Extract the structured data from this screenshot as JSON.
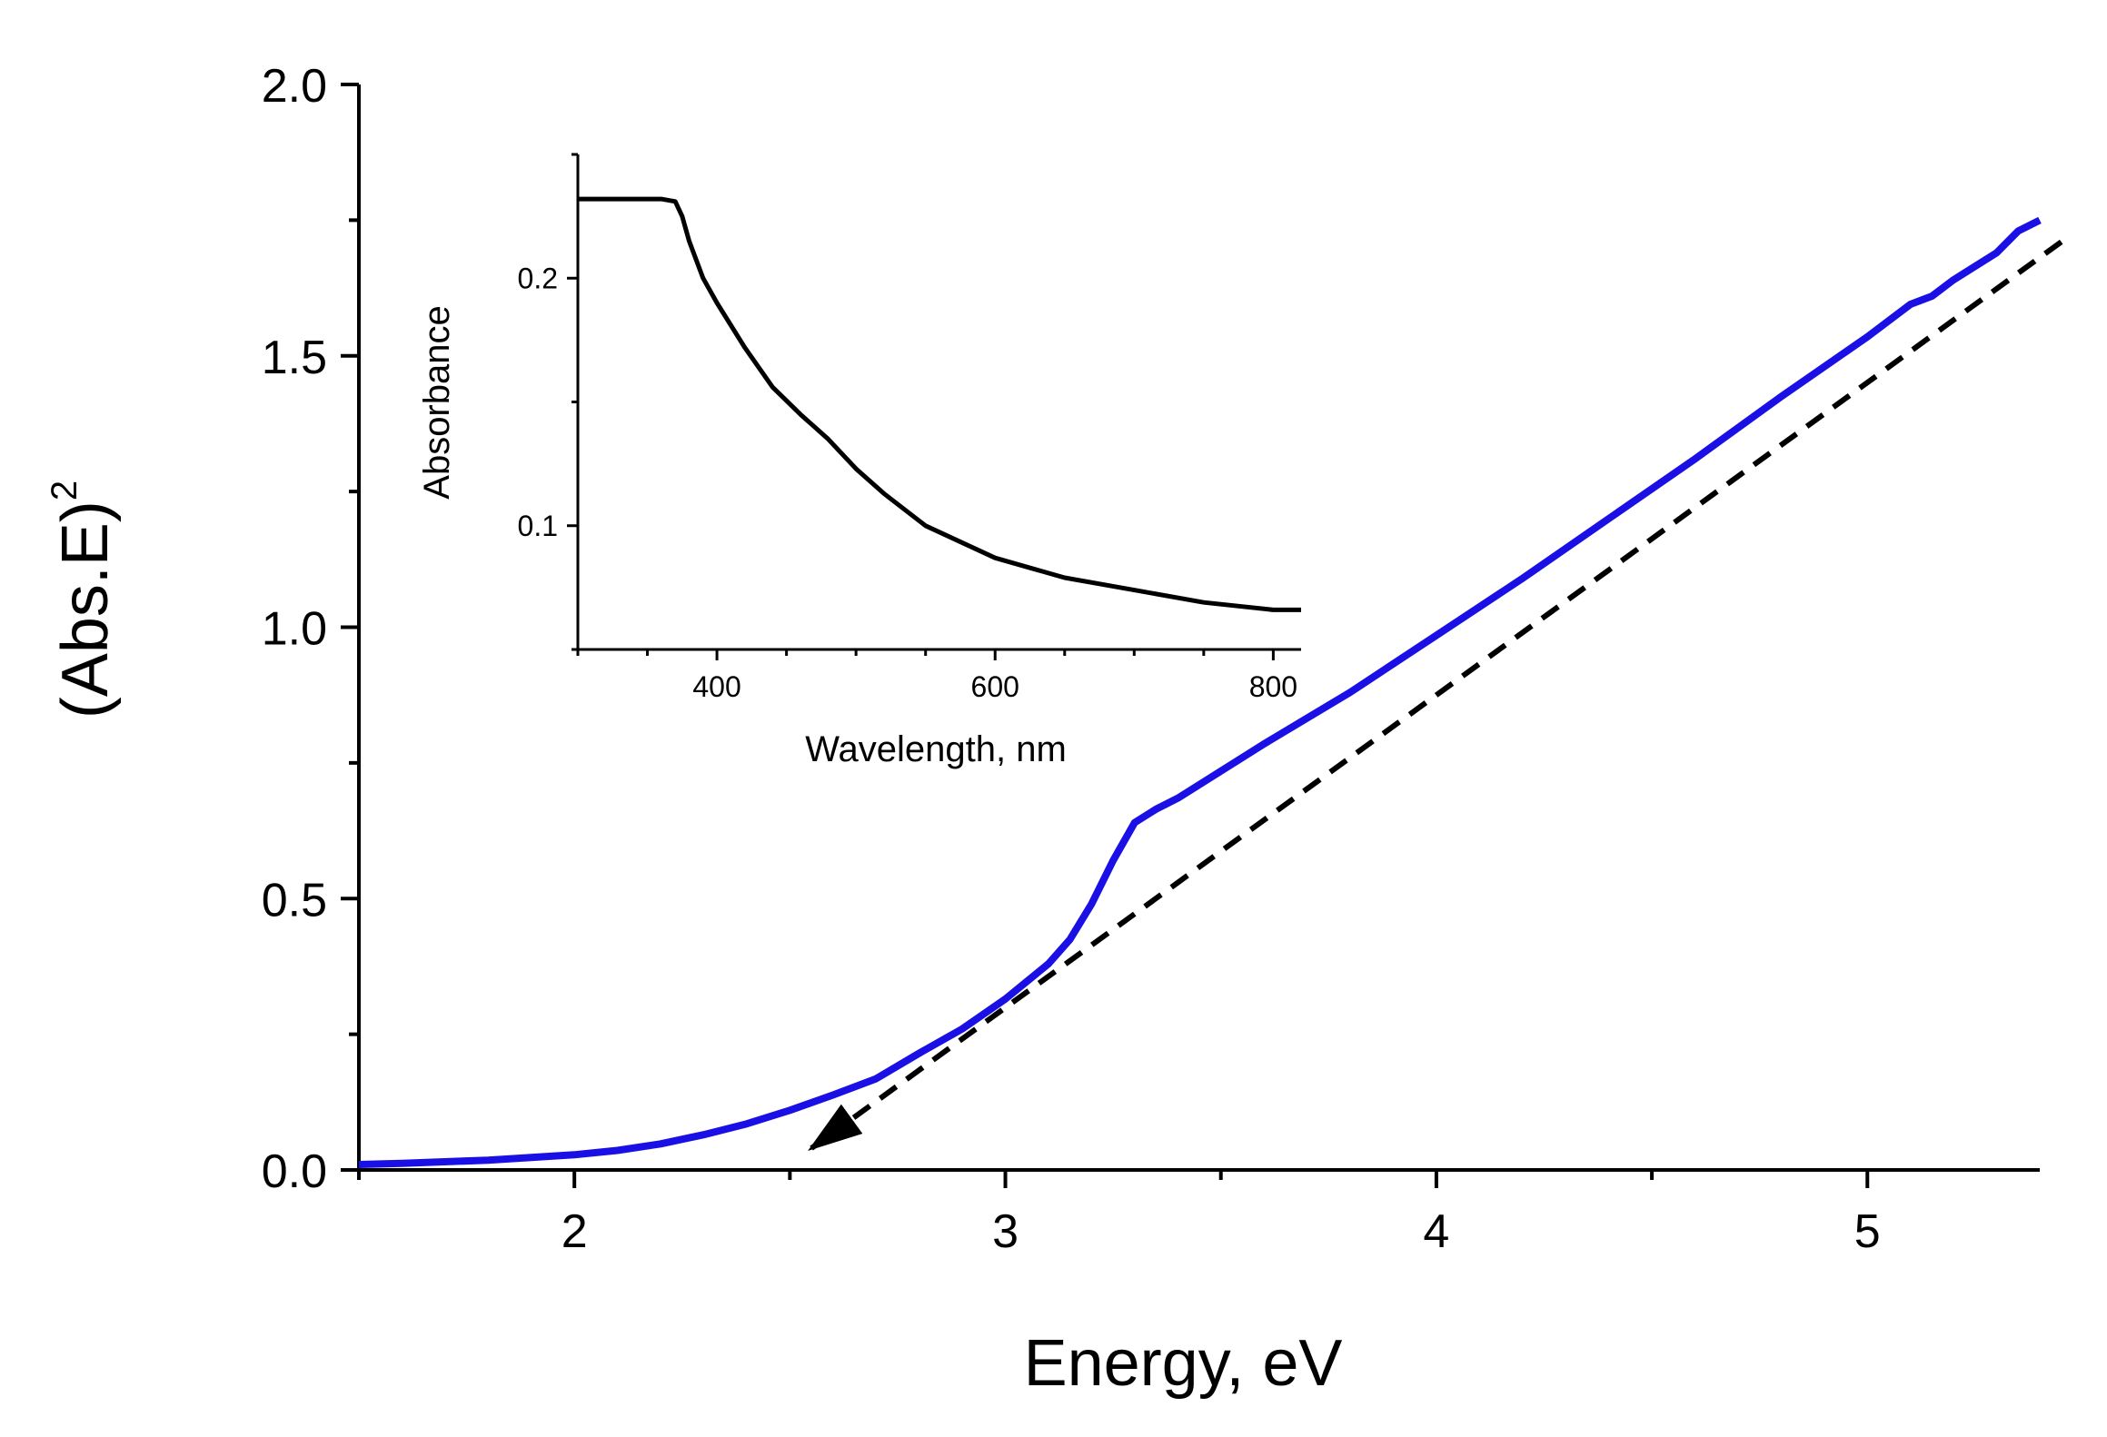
{
  "colors": {
    "main_series": "#1a10e6",
    "fit_line": "#000000",
    "axis": "#000000",
    "inset_series": "#000000"
  },
  "chart_data": [
    {
      "type": "line",
      "xlabel": "Energy, eV",
      "ylabel_base": "(Abs.E)",
      "ylabel_sup": "2",
      "xlim": [
        1.5,
        5.4
      ],
      "ylim": [
        0.0,
        2.0
      ],
      "xticks": [
        2,
        3,
        4,
        5
      ],
      "xtick_labels": [
        "2",
        "3",
        "4",
        "5"
      ],
      "xminor": [
        1.5,
        2.5,
        3.5,
        4.5
      ],
      "yticks": [
        0.0,
        0.5,
        1.0,
        1.5,
        2.0
      ],
      "ytick_labels": [
        "0.0",
        "0.5",
        "1.0",
        "1.5",
        "2.0"
      ],
      "yminor": [
        0.25,
        0.75,
        1.25,
        1.75
      ],
      "series": [
        {
          "name": "(Abs.E)^2",
          "x": [
            1.5,
            1.6,
            1.8,
            2.0,
            2.1,
            2.2,
            2.3,
            2.4,
            2.5,
            2.6,
            2.7,
            2.8,
            2.9,
            3.0,
            3.1,
            3.15,
            3.2,
            3.25,
            3.3,
            3.35,
            3.4,
            3.6,
            3.8,
            4.0,
            4.2,
            4.4,
            4.6,
            4.8,
            5.0,
            5.1,
            5.15,
            5.2,
            5.3,
            5.35,
            5.4
          ],
          "y": [
            0.01,
            0.012,
            0.018,
            0.028,
            0.036,
            0.048,
            0.065,
            0.085,
            0.11,
            0.138,
            0.168,
            0.215,
            0.26,
            0.315,
            0.38,
            0.425,
            0.49,
            0.57,
            0.64,
            0.665,
            0.685,
            0.785,
            0.88,
            0.985,
            1.09,
            1.2,
            1.31,
            1.425,
            1.535,
            1.595,
            1.61,
            1.64,
            1.69,
            1.73,
            1.75
          ]
        }
      ],
      "fit_line": {
        "x": [
          5.45,
          2.55
        ],
        "y": [
          1.71,
          0.04
        ],
        "style": "dashed",
        "arrow_end": true
      }
    },
    {
      "type": "line",
      "xlabel": "Wavelength, nm",
      "ylabel": "Absorbance",
      "xlim": [
        300,
        820
      ],
      "ylim": [
        0.05,
        0.25
      ],
      "xticks": [
        400,
        600,
        800
      ],
      "xtick_labels": [
        "400",
        "600",
        "800"
      ],
      "yticks": [
        0.1,
        0.2
      ],
      "ytick_labels": [
        "0.1",
        "0.2"
      ],
      "series": [
        {
          "name": "Absorbance",
          "x": [
            300,
            360,
            370,
            375,
            380,
            390,
            400,
            420,
            440,
            460,
            480,
            500,
            520,
            550,
            600,
            650,
            700,
            750,
            800,
            820
          ],
          "y": [
            0.232,
            0.232,
            0.231,
            0.225,
            0.215,
            0.2,
            0.19,
            0.172,
            0.156,
            0.145,
            0.135,
            0.123,
            0.113,
            0.1,
            0.087,
            0.079,
            0.074,
            0.069,
            0.066,
            0.066
          ]
        }
      ]
    }
  ]
}
